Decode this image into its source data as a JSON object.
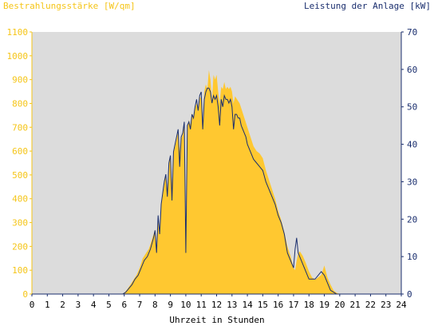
{
  "chart_data": {
    "type": "area",
    "title_left": "Bestrahlungsstärke [W/qm]",
    "title_right": "Leistung der Anlage [kW]",
    "xlabel": "Uhrzeit in Stunden",
    "xlim": [
      0,
      24
    ],
    "ylim_left": [
      0,
      1100
    ],
    "ylim_right": [
      0,
      70
    ],
    "x_ticks": [
      "0",
      "1",
      "2",
      "3",
      "4",
      "5",
      "6",
      "7",
      "8",
      "9",
      "10",
      "11",
      "12",
      "13",
      "14",
      "15",
      "16",
      "17",
      "18",
      "19",
      "20",
      "21",
      "22",
      "23",
      "24"
    ],
    "y_left_ticks": [
      "0",
      "100",
      "200",
      "300",
      "400",
      "500",
      "600",
      "700",
      "800",
      "900",
      "1000",
      "1100"
    ],
    "y_right_ticks": [
      "0",
      "10",
      "20",
      "30",
      "40",
      "50",
      "60",
      "70"
    ],
    "colors": {
      "irradiance": "#ffc830",
      "power": "#1a2e6e",
      "plot_bg": "#dcdcdc",
      "left_axis": "#f5c518",
      "right_axis": "#1a2e6e"
    },
    "series": [
      {
        "name": "Bestrahlungsstärke",
        "axis": "left",
        "x": [
          0,
          5.8,
          6.0,
          6.2,
          6.4,
          6.6,
          6.8,
          7.0,
          7.2,
          7.4,
          7.6,
          7.8,
          8.0,
          8.1,
          8.2,
          8.3,
          8.4,
          8.5,
          8.6,
          8.7,
          8.8,
          8.9,
          9.0,
          9.1,
          9.2,
          9.3,
          9.4,
          9.5,
          9.6,
          9.7,
          9.8,
          9.9,
          10.0,
          10.1,
          10.2,
          10.3,
          10.4,
          10.5,
          10.6,
          10.7,
          10.8,
          10.9,
          11.0,
          11.1,
          11.2,
          11.3,
          11.4,
          11.5,
          11.6,
          11.7,
          11.8,
          11.9,
          12.0,
          12.1,
          12.2,
          12.3,
          12.4,
          12.5,
          12.6,
          12.7,
          12.8,
          12.9,
          13.0,
          13.1,
          13.2,
          13.3,
          13.4,
          13.5,
          13.6,
          13.7,
          13.8,
          13.9,
          14.0,
          14.2,
          14.4,
          14.6,
          14.8,
          15.0,
          15.2,
          15.4,
          15.6,
          15.8,
          16.0,
          16.2,
          16.4,
          16.6,
          16.8,
          17.0,
          17.1,
          17.2,
          17.3,
          17.4,
          17.6,
          17.8,
          18.0,
          18.2,
          18.4,
          18.6,
          18.8,
          19.0,
          19.2,
          19.4,
          19.6,
          19.8,
          20.0,
          24
        ],
        "values": [
          0,
          0,
          5,
          20,
          40,
          60,
          80,
          110,
          150,
          170,
          190,
          230,
          270,
          200,
          320,
          260,
          380,
          420,
          480,
          500,
          440,
          560,
          580,
          460,
          600,
          620,
          650,
          680,
          600,
          650,
          670,
          720,
          200,
          700,
          730,
          710,
          760,
          740,
          780,
          800,
          770,
          830,
          820,
          700,
          850,
          880,
          860,
          940,
          900,
          810,
          920,
          900,
          920,
          850,
          800,
          870,
          860,
          890,
          860,
          870,
          860,
          870,
          850,
          800,
          830,
          820,
          810,
          800,
          780,
          760,
          740,
          720,
          700,
          660,
          620,
          600,
          590,
          570,
          520,
          480,
          440,
          400,
          350,
          310,
          260,
          200,
          160,
          110,
          100,
          140,
          170,
          180,
          160,
          130,
          95,
          70,
          60,
          70,
          80,
          120,
          70,
          40,
          15,
          5,
          0,
          0
        ]
      },
      {
        "name": "Leistung der Anlage",
        "axis": "right",
        "x": [
          0,
          5.9,
          6.1,
          6.3,
          6.5,
          6.7,
          6.9,
          7.1,
          7.3,
          7.5,
          7.7,
          7.9,
          8.0,
          8.1,
          8.2,
          8.3,
          8.4,
          8.5,
          8.6,
          8.7,
          8.8,
          8.9,
          9.0,
          9.1,
          9.2,
          9.3,
          9.4,
          9.5,
          9.6,
          9.7,
          9.8,
          9.9,
          10.0,
          10.1,
          10.2,
          10.3,
          10.4,
          10.5,
          10.6,
          10.7,
          10.8,
          10.9,
          11.0,
          11.1,
          11.2,
          11.3,
          11.4,
          11.5,
          11.6,
          11.7,
          11.8,
          11.9,
          12.0,
          12.1,
          12.2,
          12.3,
          12.4,
          12.5,
          12.6,
          12.7,
          12.8,
          12.9,
          13.0,
          13.1,
          13.2,
          13.3,
          13.4,
          13.5,
          13.6,
          13.7,
          13.8,
          13.9,
          14.0,
          14.2,
          14.4,
          14.6,
          14.8,
          15.0,
          15.2,
          15.4,
          15.6,
          15.8,
          16.0,
          16.2,
          16.4,
          16.6,
          16.8,
          17.0,
          17.1,
          17.2,
          17.3,
          17.4,
          17.6,
          17.8,
          18.0,
          18.2,
          18.4,
          18.6,
          18.8,
          19.0,
          19.2,
          19.4,
          19.6,
          19.8,
          20.0,
          24
        ],
        "values": [
          0,
          0,
          0.5,
          1.5,
          2.5,
          4,
          5,
          7,
          9,
          10,
          12,
          15,
          17,
          11,
          21,
          16,
          24,
          27,
          30,
          32,
          26,
          35,
          37,
          25,
          38,
          40,
          42,
          44,
          34,
          42,
          43,
          46,
          11,
          45,
          46,
          44,
          48,
          47,
          50,
          52,
          49,
          53,
          54,
          44,
          52,
          54,
          55,
          55,
          54,
          51,
          53,
          52,
          53,
          50,
          45,
          52,
          50,
          53,
          52,
          52,
          51,
          52,
          50,
          44,
          48,
          48,
          47,
          47,
          45,
          44,
          43,
          42,
          40,
          38,
          36,
          35,
          34,
          33,
          30,
          28,
          26,
          24,
          21,
          19,
          16,
          11,
          9,
          7,
          12,
          15,
          11,
          10,
          8,
          6,
          4,
          4,
          4,
          5,
          6,
          5,
          3,
          1,
          0.5,
          0,
          0,
          0
        ]
      }
    ]
  }
}
